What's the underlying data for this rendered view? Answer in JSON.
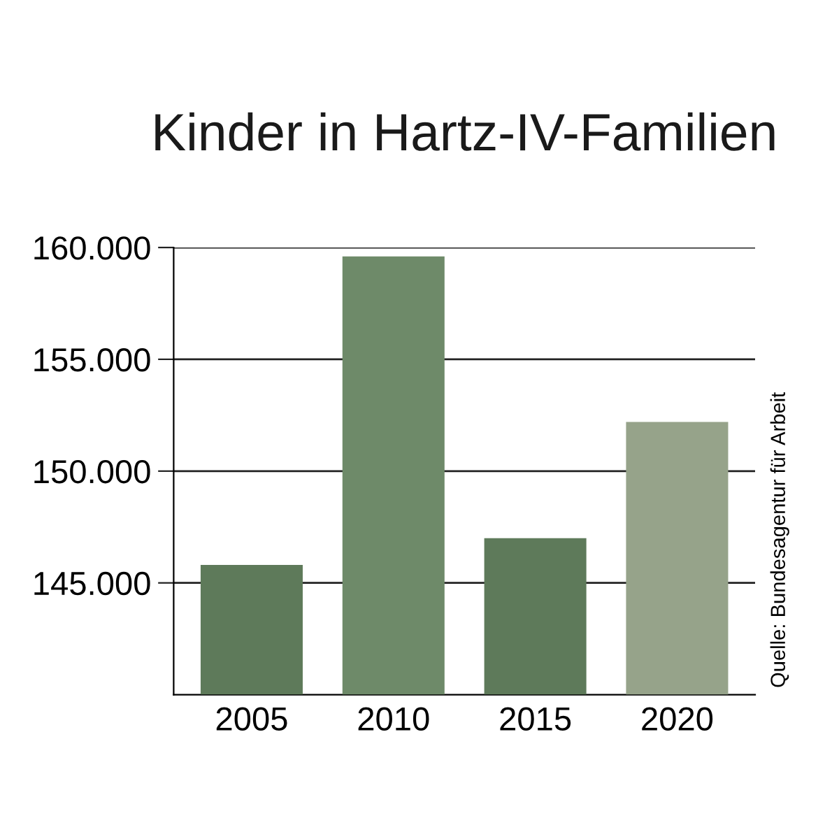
{
  "chart_data": {
    "type": "bar",
    "title": "Kinder in Hartz-IV-Familien",
    "categories": [
      "2005",
      "2010",
      "2015",
      "2020"
    ],
    "values": [
      145800,
      159600,
      147000,
      152200
    ],
    "colors": [
      "#5e7a5a",
      "#6e8a69",
      "#5e7a5a",
      "#96a38a"
    ],
    "ylim": [
      140000,
      160000
    ],
    "yticks": [
      {
        "value": 145000,
        "label": "145.000"
      },
      {
        "value": 150000,
        "label": "150.000"
      },
      {
        "value": 155000,
        "label": "155.000"
      },
      {
        "value": 160000,
        "label": "160.000"
      }
    ],
    "grid": "y",
    "annotations": [
      "Quelle: Bundesagentur für Arbeit"
    ]
  }
}
